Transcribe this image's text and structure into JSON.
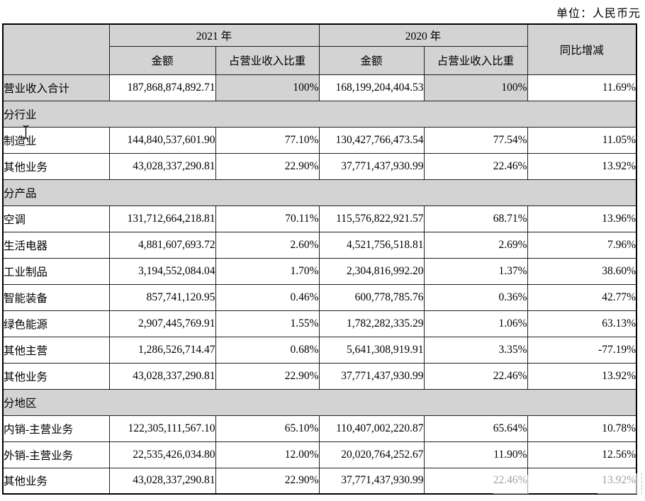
{
  "unit_label": "单位：人民币元",
  "colors": {
    "header_bg": "#d3d3d3",
    "border": "#1f1f1f",
    "page_bg": "#ffffff"
  },
  "table": {
    "header": {
      "year_2021": "2021 年",
      "year_2020": "2020 年",
      "yoy": "同比增减",
      "amount_2021": "金额",
      "share_2021": "占营业收入比重",
      "amount_2020": "金额",
      "share_2020": "占营业收入比重"
    },
    "rows": [
      {
        "type": "total",
        "label": "营业收入合计",
        "cells": [
          "187,868,874,892.71",
          "100%",
          "168,199,204,404.53",
          "100%",
          "11.69%"
        ]
      },
      {
        "type": "section",
        "label": "分行业"
      },
      {
        "type": "data",
        "label": "制造业",
        "cells": [
          "144,840,537,601.90",
          "77.10%",
          "130,427,766,473.54",
          "77.54%",
          "11.05%"
        ]
      },
      {
        "type": "data",
        "label": "其他业务",
        "cells": [
          "43,028,337,290.81",
          "22.90%",
          "37,771,437,930.99",
          "22.46%",
          "13.92%"
        ]
      },
      {
        "type": "section",
        "label": "分产品"
      },
      {
        "type": "data",
        "label": "空调",
        "cells": [
          "131,712,664,218.81",
          "70.11%",
          "115,576,822,921.57",
          "68.71%",
          "13.96%"
        ]
      },
      {
        "type": "data",
        "label": "生活电器",
        "cells": [
          "4,881,607,693.72",
          "2.60%",
          "4,521,756,518.81",
          "2.69%",
          "7.96%"
        ]
      },
      {
        "type": "data",
        "label": "工业制品",
        "cells": [
          "3,194,552,084.04",
          "1.70%",
          "2,304,816,992.20",
          "1.37%",
          "38.60%"
        ]
      },
      {
        "type": "data",
        "label": "智能装备",
        "cells": [
          "857,741,120.95",
          "0.46%",
          "600,778,785.76",
          "0.36%",
          "42.77%"
        ]
      },
      {
        "type": "data",
        "label": "绿色能源",
        "cells": [
          "2,907,445,769.91",
          "1.55%",
          "1,782,282,335.29",
          "1.06%",
          "63.13%"
        ]
      },
      {
        "type": "data",
        "label": "其他主营",
        "cells": [
          "1,286,526,714.47",
          "0.68%",
          "5,641,308,919.91",
          "3.35%",
          "-77.19%"
        ]
      },
      {
        "type": "data",
        "label": "其他业务",
        "cells": [
          "43,028,337,290.81",
          "22.90%",
          "37,771,437,930.99",
          "22.46%",
          "13.92%"
        ]
      },
      {
        "type": "section",
        "label": "分地区"
      },
      {
        "type": "data",
        "label": "内销-主营业务",
        "cells": [
          "122,305,111,567.10",
          "65.10%",
          "110,407,002,220.87",
          "65.64%",
          "10.78%"
        ]
      },
      {
        "type": "data",
        "label": "外销-主营业务",
        "cells": [
          "22,535,426,034.80",
          "12.00%",
          "20,020,764,252.67",
          "11.90%",
          "12.56%"
        ]
      },
      {
        "type": "data",
        "label": "其他业务",
        "cells": [
          "43,028,337,290.81",
          "22.90%",
          "37,771,437,930.99",
          "22.46%",
          "13.92%"
        ]
      }
    ]
  }
}
